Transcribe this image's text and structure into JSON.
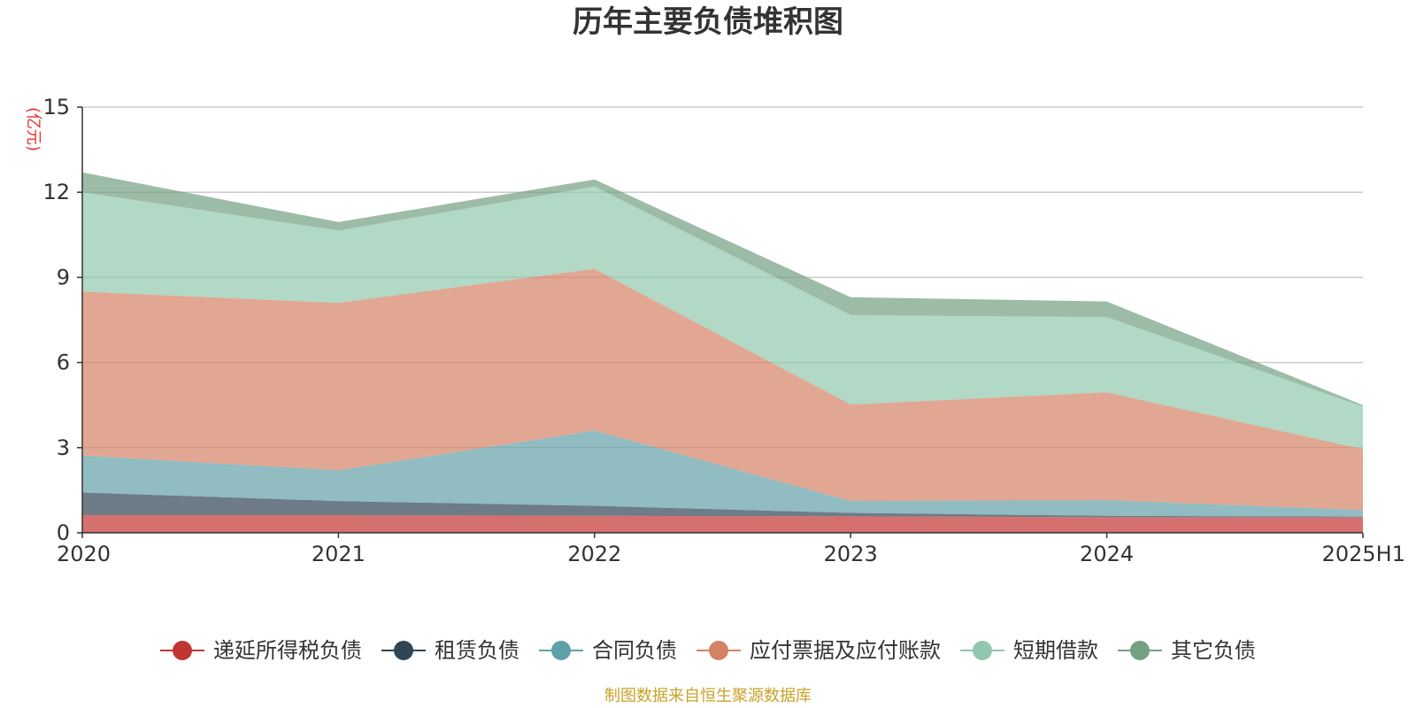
{
  "chart_data": {
    "type": "area",
    "stacked": true,
    "title": "历年主要负债堆积图",
    "y_unit": "(亿元)",
    "x": [
      "2020",
      "2021",
      "2022",
      "2023",
      "2024",
      "2025H1"
    ],
    "ylim": [
      0,
      15
    ],
    "y_ticks": [
      "0",
      "3",
      "6",
      "9",
      "12",
      "15"
    ],
    "grid": true,
    "legend_position": "bottom",
    "series": [
      {
        "name": "递延所得税负债",
        "color": "#c23531",
        "values": [
          0.62,
          0.62,
          0.6,
          0.58,
          0.55,
          0.55
        ]
      },
      {
        "name": "租赁负债",
        "color": "#2f4554",
        "values": [
          0.8,
          0.5,
          0.35,
          0.12,
          0.05,
          0.02
        ]
      },
      {
        "name": "合同负债",
        "color": "#61a0a8",
        "values": [
          1.3,
          1.08,
          2.65,
          0.42,
          0.55,
          0.23
        ]
      },
      {
        "name": "应付票据及应付账款",
        "color": "#d48265",
        "values": [
          5.78,
          5.9,
          5.7,
          3.4,
          3.8,
          2.15
        ]
      },
      {
        "name": "短期借款",
        "color": "#91c7ae",
        "values": [
          3.5,
          2.55,
          2.9,
          3.15,
          2.65,
          1.5
        ]
      },
      {
        "name": "其它负债",
        "color": "#749f83",
        "values": [
          0.7,
          0.3,
          0.25,
          0.63,
          0.55,
          0.05
        ]
      }
    ]
  },
  "source_note": "制图数据来自恒生聚源数据库"
}
